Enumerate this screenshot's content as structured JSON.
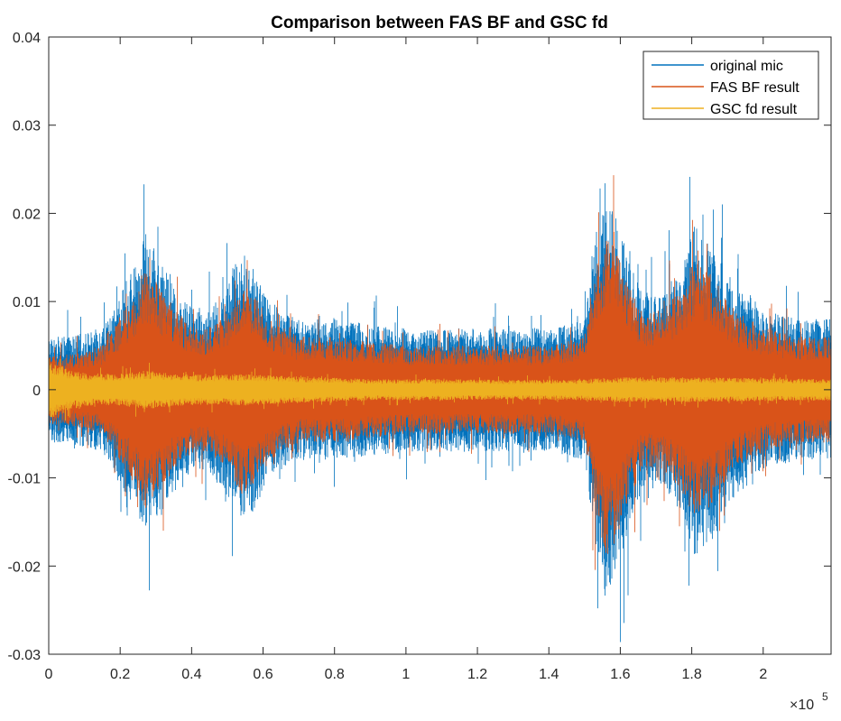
{
  "chart_data": {
    "type": "line",
    "title": "Comparison between FAS BF and GSC fd",
    "xlabel": "",
    "ylabel": "",
    "xlim": [
      0,
      219000
    ],
    "ylim": [
      -0.03,
      0.04
    ],
    "x_ticks": [
      0,
      20000,
      40000,
      60000,
      80000,
      100000,
      120000,
      140000,
      160000,
      180000,
      200000
    ],
    "x_tick_labels": [
      "0",
      "0.2",
      "0.4",
      "0.6",
      "0.8",
      "1",
      "1.2",
      "1.4",
      "1.6",
      "1.8",
      "2"
    ],
    "x_exponent_label": "×10",
    "x_exponent_power": "5",
    "y_ticks": [
      -0.03,
      -0.02,
      -0.01,
      0,
      0.01,
      0.02,
      0.03,
      0.04
    ],
    "y_tick_labels": [
      "-0.03",
      "-0.02",
      "-0.01",
      "0",
      "0.01",
      "0.02",
      "0.03",
      "0.04"
    ],
    "grid": false,
    "legend_position": "top-right",
    "series": [
      {
        "name": "original mic",
        "color": "#0072BD",
        "envelope_x": [
          0,
          5000,
          15000,
          18000,
          24000,
          27000,
          32000,
          38000,
          44000,
          50000,
          54000,
          57000,
          62000,
          70000,
          80000,
          100000,
          120000,
          140000,
          150000,
          153000,
          156000,
          159000,
          162000,
          166000,
          172000,
          178000,
          181000,
          186000,
          192000,
          196000,
          200000,
          210000,
          219000
        ],
        "envelope_upper": [
          0.006,
          0.006,
          0.007,
          0.009,
          0.014,
          0.018,
          0.014,
          0.01,
          0.009,
          0.012,
          0.016,
          0.014,
          0.01,
          0.008,
          0.008,
          0.007,
          0.007,
          0.007,
          0.008,
          0.018,
          0.022,
          0.02,
          0.015,
          0.011,
          0.011,
          0.015,
          0.019,
          0.016,
          0.012,
          0.011,
          0.009,
          0.008,
          0.008
        ],
        "envelope_lower": [
          -0.006,
          -0.006,
          -0.007,
          -0.009,
          -0.014,
          -0.017,
          -0.014,
          -0.01,
          -0.009,
          -0.012,
          -0.015,
          -0.014,
          -0.01,
          -0.008,
          -0.008,
          -0.007,
          -0.007,
          -0.007,
          -0.008,
          -0.018,
          -0.024,
          -0.022,
          -0.016,
          -0.012,
          -0.011,
          -0.015,
          -0.019,
          -0.017,
          -0.012,
          -0.011,
          -0.009,
          -0.008,
          -0.008
        ],
        "peaks_max": 0.031,
        "peaks_min": -0.029
      },
      {
        "name": "FAS BF result",
        "color": "#D95319",
        "envelope_x": [
          0,
          5000,
          15000,
          18000,
          24000,
          27000,
          32000,
          38000,
          44000,
          50000,
          54000,
          57000,
          62000,
          70000,
          80000,
          100000,
          120000,
          140000,
          150000,
          153000,
          156000,
          159000,
          162000,
          166000,
          172000,
          178000,
          181000,
          186000,
          192000,
          196000,
          200000,
          210000,
          219000
        ],
        "envelope_upper": [
          0.004,
          0.004,
          0.005,
          0.007,
          0.011,
          0.014,
          0.011,
          0.008,
          0.007,
          0.009,
          0.012,
          0.011,
          0.008,
          0.006,
          0.006,
          0.005,
          0.005,
          0.005,
          0.006,
          0.014,
          0.017,
          0.016,
          0.012,
          0.009,
          0.009,
          0.012,
          0.015,
          0.013,
          0.009,
          0.008,
          0.007,
          0.006,
          0.006
        ],
        "envelope_lower": [
          -0.004,
          -0.004,
          -0.005,
          -0.007,
          -0.011,
          -0.014,
          -0.011,
          -0.008,
          -0.007,
          -0.009,
          -0.012,
          -0.011,
          -0.008,
          -0.006,
          -0.006,
          -0.005,
          -0.005,
          -0.005,
          -0.006,
          -0.014,
          -0.019,
          -0.017,
          -0.013,
          -0.009,
          -0.009,
          -0.012,
          -0.015,
          -0.013,
          -0.009,
          -0.008,
          -0.007,
          -0.006,
          -0.006
        ],
        "peaks_max": 0.026,
        "peaks_min": -0.025
      },
      {
        "name": "GSC fd result",
        "color": "#EDB120",
        "envelope_x": [
          0,
          2000,
          6000,
          12000,
          20000,
          27000,
          40000,
          55000,
          70000,
          90000,
          110000,
          130000,
          150000,
          160000,
          180000,
          200000,
          219000
        ],
        "envelope_upper": [
          0.0035,
          0.003,
          0.0022,
          0.0018,
          0.0018,
          0.0022,
          0.0017,
          0.0018,
          0.0015,
          0.0012,
          0.0012,
          0.0011,
          0.0012,
          0.0014,
          0.0014,
          0.0013,
          0.0012
        ],
        "envelope_lower": [
          -0.0035,
          -0.003,
          -0.0022,
          -0.0018,
          -0.0018,
          -0.0022,
          -0.0017,
          -0.0018,
          -0.0015,
          -0.0012,
          -0.0012,
          -0.0011,
          -0.0012,
          -0.0014,
          -0.0014,
          -0.0013,
          -0.0012
        ],
        "peaks_max": 0.0035,
        "peaks_min": -0.0035
      }
    ]
  }
}
